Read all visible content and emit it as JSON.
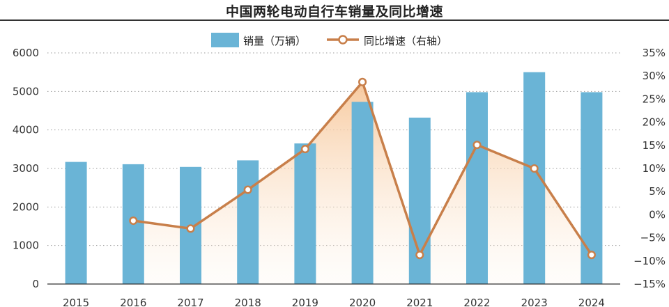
{
  "chart_data": {
    "type": "bar",
    "title": "中国两轮电动自行车销量及同比增速",
    "categories": [
      "2015",
      "2016",
      "2017",
      "2018",
      "2019",
      "2020",
      "2021",
      "2022",
      "2023",
      "2024"
    ],
    "series": [
      {
        "name": "销量（万辆）",
        "type": "bar",
        "axis": "left",
        "values": [
          3170,
          3110,
          3040,
          3210,
          3650,
          4730,
          4320,
          4980,
          5500,
          4980
        ]
      },
      {
        "name": "同比增速（右轴）",
        "type": "line",
        "axis": "right",
        "values": [
          null,
          -1.3,
          -3.0,
          5.4,
          14.2,
          28.7,
          -8.7,
          15.1,
          10.0,
          -8.7
        ]
      }
    ],
    "y_left": {
      "lim": [
        0,
        6000
      ],
      "ticks": [
        0,
        1000,
        2000,
        3000,
        4000,
        5000,
        6000
      ],
      "tick_labels": [
        "0",
        "1000",
        "2000",
        "3000",
        "4000",
        "5000",
        "6000"
      ]
    },
    "y_right": {
      "lim": [
        -15,
        35
      ],
      "ticks": [
        -15,
        -10,
        -5,
        0,
        5,
        10,
        15,
        20,
        25,
        30,
        35
      ],
      "tick_labels": [
        "−15%",
        "−10%",
        "−5%",
        "0%",
        "5%",
        "10%",
        "15%",
        "20%",
        "25%",
        "30%",
        "35%"
      ]
    },
    "grid": "horizontal dotted",
    "legend_position": "top-center",
    "colors": {
      "bar": "#6ab4d6",
      "line": "#c87f4a",
      "area_top": "#f7c79a",
      "grid": "#9a9a9a"
    }
  }
}
